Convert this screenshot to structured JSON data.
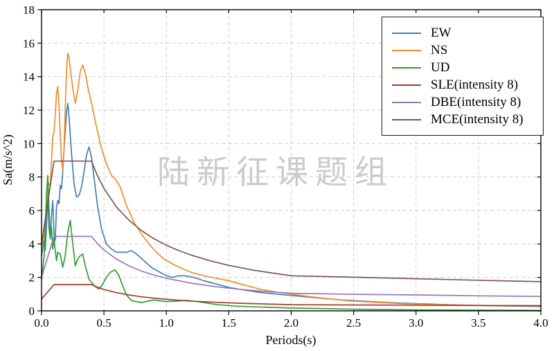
{
  "watermark": "陆新征课题组",
  "chart_data": {
    "type": "line",
    "title": "",
    "xlabel": "Periods(s)",
    "ylabel": "Sa(m/s^2)",
    "xlim": [
      0,
      4
    ],
    "ylim": [
      0,
      18
    ],
    "xticks": [
      0,
      0.5,
      1,
      1.5,
      2,
      2.5,
      3,
      3.5,
      4
    ],
    "xtick_labels": [
      "0.0",
      "0.5",
      "1.0",
      "1.5",
      "2.0",
      "2.5",
      "3.0",
      "3.5",
      "4.0"
    ],
    "yticks": [
      0,
      2,
      4,
      6,
      8,
      10,
      12,
      14,
      16,
      18
    ],
    "ytick_labels": [
      "0",
      "2",
      "4",
      "6",
      "8",
      "10",
      "12",
      "14",
      "16",
      "18"
    ],
    "grid": true,
    "grid_style": "dashed",
    "legend_position": "top-right",
    "series": [
      {
        "name": "EW",
        "color": "#4080b2",
        "points": [
          [
            0,
            3.3
          ],
          [
            0.02,
            4.2
          ],
          [
            0.03,
            3.6
          ],
          [
            0.04,
            5.1
          ],
          [
            0.05,
            6.9
          ],
          [
            0.06,
            4.9
          ],
          [
            0.07,
            4.3
          ],
          [
            0.08,
            5.7
          ],
          [
            0.09,
            6.6
          ],
          [
            0.1,
            4.6
          ],
          [
            0.11,
            4.2
          ],
          [
            0.12,
            6.2
          ],
          [
            0.13,
            6.6
          ],
          [
            0.14,
            6.4
          ],
          [
            0.15,
            7.5
          ],
          [
            0.16,
            7.3
          ],
          [
            0.17,
            8.3
          ],
          [
            0.18,
            9.6
          ],
          [
            0.2,
            11.9
          ],
          [
            0.21,
            12.4
          ],
          [
            0.22,
            11.6
          ],
          [
            0.24,
            9.4
          ],
          [
            0.26,
            7.6
          ],
          [
            0.28,
            6.8
          ],
          [
            0.3,
            6.9
          ],
          [
            0.32,
            7.4
          ],
          [
            0.34,
            8.3
          ],
          [
            0.36,
            9.3
          ],
          [
            0.38,
            9.8
          ],
          [
            0.4,
            9.2
          ],
          [
            0.42,
            8.0
          ],
          [
            0.45,
            6.2
          ],
          [
            0.48,
            4.9
          ],
          [
            0.52,
            4.0
          ],
          [
            0.56,
            3.7
          ],
          [
            0.6,
            3.5
          ],
          [
            0.64,
            3.5
          ],
          [
            0.68,
            3.5
          ],
          [
            0.72,
            3.6
          ],
          [
            0.76,
            3.4
          ],
          [
            0.82,
            3.0
          ],
          [
            0.88,
            2.6
          ],
          [
            0.95,
            2.3
          ],
          [
            1.0,
            2.1
          ],
          [
            1.05,
            2.0
          ],
          [
            1.1,
            2.1
          ],
          [
            1.15,
            2.1
          ],
          [
            1.22,
            2.0
          ],
          [
            1.3,
            1.8
          ],
          [
            1.4,
            1.6
          ],
          [
            1.5,
            1.4
          ],
          [
            1.62,
            1.25
          ],
          [
            1.75,
            1.1
          ],
          [
            1.88,
            1.0
          ],
          [
            2.0,
            0.92
          ],
          [
            2.2,
            0.78
          ],
          [
            2.4,
            0.66
          ],
          [
            2.6,
            0.57
          ],
          [
            2.8,
            0.49
          ],
          [
            3.0,
            0.43
          ],
          [
            3.25,
            0.37
          ],
          [
            3.5,
            0.32
          ],
          [
            3.75,
            0.29
          ],
          [
            4.0,
            0.26
          ]
        ]
      },
      {
        "name": "NS",
        "color": "#f78b29",
        "points": [
          [
            0,
            3.8
          ],
          [
            0.02,
            4.5
          ],
          [
            0.04,
            6.3
          ],
          [
            0.05,
            7.3
          ],
          [
            0.06,
            7.6
          ],
          [
            0.07,
            7.5
          ],
          [
            0.08,
            9.0
          ],
          [
            0.09,
            10.4
          ],
          [
            0.1,
            10.7
          ],
          [
            0.11,
            11.7
          ],
          [
            0.12,
            13.0
          ],
          [
            0.13,
            13.4
          ],
          [
            0.14,
            12.3
          ],
          [
            0.15,
            10.5
          ],
          [
            0.16,
            9.0
          ],
          [
            0.17,
            8.4
          ],
          [
            0.18,
            9.7
          ],
          [
            0.19,
            12.1
          ],
          [
            0.2,
            14.4
          ],
          [
            0.21,
            15.4
          ],
          [
            0.22,
            15.1
          ],
          [
            0.23,
            14.5
          ],
          [
            0.25,
            13.3
          ],
          [
            0.27,
            12.4
          ],
          [
            0.29,
            13.2
          ],
          [
            0.31,
            14.3
          ],
          [
            0.33,
            14.7
          ],
          [
            0.35,
            14.2
          ],
          [
            0.37,
            13.4
          ],
          [
            0.4,
            12.4
          ],
          [
            0.44,
            11.0
          ],
          [
            0.48,
            9.7
          ],
          [
            0.52,
            8.8
          ],
          [
            0.56,
            8.1
          ],
          [
            0.59,
            7.9
          ],
          [
            0.63,
            7.4
          ],
          [
            0.68,
            6.3
          ],
          [
            0.74,
            5.3
          ],
          [
            0.8,
            4.6
          ],
          [
            0.86,
            4.0
          ],
          [
            0.92,
            3.5
          ],
          [
            0.98,
            3.1
          ],
          [
            1.05,
            2.8
          ],
          [
            1.12,
            2.55
          ],
          [
            1.2,
            2.3
          ],
          [
            1.3,
            2.1
          ],
          [
            1.4,
            1.95
          ],
          [
            1.5,
            1.8
          ],
          [
            1.62,
            1.55
          ],
          [
            1.75,
            1.3
          ],
          [
            1.88,
            1.12
          ],
          [
            2.0,
            1.0
          ],
          [
            2.15,
            0.85
          ],
          [
            2.3,
            0.72
          ],
          [
            2.5,
            0.58
          ],
          [
            2.7,
            0.5
          ],
          [
            2.9,
            0.43
          ],
          [
            3.1,
            0.38
          ],
          [
            3.3,
            0.35
          ],
          [
            3.6,
            0.32
          ],
          [
            4.0,
            0.3
          ]
        ]
      },
      {
        "name": "UD",
        "color": "#2ca02c",
        "points": [
          [
            0,
            1.9
          ],
          [
            0.02,
            3.2
          ],
          [
            0.03,
            5.0
          ],
          [
            0.04,
            7.0
          ],
          [
            0.05,
            8.1
          ],
          [
            0.06,
            6.1
          ],
          [
            0.07,
            4.4
          ],
          [
            0.08,
            5.0
          ],
          [
            0.09,
            3.7
          ],
          [
            0.1,
            4.3
          ],
          [
            0.11,
            3.6
          ],
          [
            0.12,
            3.0
          ],
          [
            0.13,
            3.5
          ],
          [
            0.15,
            3.4
          ],
          [
            0.17,
            2.6
          ],
          [
            0.19,
            3.3
          ],
          [
            0.21,
            4.7
          ],
          [
            0.23,
            5.4
          ],
          [
            0.25,
            4.0
          ],
          [
            0.27,
            2.7
          ],
          [
            0.29,
            3.1
          ],
          [
            0.31,
            3.3
          ],
          [
            0.33,
            3.4
          ],
          [
            0.35,
            2.7
          ],
          [
            0.38,
            1.9
          ],
          [
            0.4,
            1.7
          ],
          [
            0.43,
            1.45
          ],
          [
            0.46,
            1.3
          ],
          [
            0.49,
            1.6
          ],
          [
            0.52,
            2.0
          ],
          [
            0.55,
            2.3
          ],
          [
            0.59,
            2.45
          ],
          [
            0.62,
            2.1
          ],
          [
            0.65,
            1.5
          ],
          [
            0.68,
            0.95
          ],
          [
            0.72,
            0.62
          ],
          [
            0.76,
            0.55
          ],
          [
            0.8,
            0.5
          ],
          [
            0.85,
            0.58
          ],
          [
            0.9,
            0.65
          ],
          [
            0.95,
            0.6
          ],
          [
            1.0,
            0.56
          ],
          [
            1.08,
            0.58
          ],
          [
            1.16,
            0.63
          ],
          [
            1.25,
            0.55
          ],
          [
            1.4,
            0.38
          ],
          [
            1.55,
            0.28
          ],
          [
            1.7,
            0.24
          ],
          [
            2.0,
            0.17
          ],
          [
            2.5,
            0.1
          ],
          [
            3.0,
            0.06
          ],
          [
            3.5,
            0.04
          ],
          [
            4.0,
            0.03
          ]
        ]
      },
      {
        "name": "SLE(intensity 8)",
        "color": "#a93931",
        "points": [
          [
            0,
            0.71
          ],
          [
            0.1,
            1.57
          ],
          [
            0.4,
            1.57
          ],
          [
            0.45,
            1.41
          ],
          [
            0.5,
            1.28
          ],
          [
            0.6,
            1.09
          ],
          [
            0.7,
            0.95
          ],
          [
            0.8,
            0.84
          ],
          [
            0.9,
            0.76
          ],
          [
            1.0,
            0.69
          ],
          [
            1.2,
            0.58
          ],
          [
            1.4,
            0.51
          ],
          [
            1.6,
            0.45
          ],
          [
            1.8,
            0.41
          ],
          [
            2.0,
            0.37
          ],
          [
            2.5,
            0.35
          ],
          [
            3.0,
            0.34
          ],
          [
            3.5,
            0.32
          ],
          [
            4.0,
            0.31
          ]
        ]
      },
      {
        "name": "DBE(intensity 8)",
        "color": "#9577bd",
        "points": [
          [
            0,
            2.0
          ],
          [
            0.1,
            4.45
          ],
          [
            0.4,
            4.45
          ],
          [
            0.45,
            4.0
          ],
          [
            0.5,
            3.64
          ],
          [
            0.6,
            3.09
          ],
          [
            0.7,
            2.69
          ],
          [
            0.8,
            2.38
          ],
          [
            0.9,
            2.14
          ],
          [
            1.0,
            1.95
          ],
          [
            1.2,
            1.65
          ],
          [
            1.4,
            1.44
          ],
          [
            1.6,
            1.28
          ],
          [
            1.8,
            1.15
          ],
          [
            2.0,
            1.05
          ],
          [
            2.5,
            0.99
          ],
          [
            3.0,
            0.95
          ],
          [
            3.5,
            0.9
          ],
          [
            4.0,
            0.86
          ]
        ]
      },
      {
        "name": "MCE(intensity 8)",
        "color": "#7d564c",
        "points": [
          [
            0,
            4.0
          ],
          [
            0.1,
            8.95
          ],
          [
            0.4,
            8.95
          ],
          [
            0.45,
            8.05
          ],
          [
            0.5,
            7.32
          ],
          [
            0.6,
            6.21
          ],
          [
            0.7,
            5.42
          ],
          [
            0.8,
            4.8
          ],
          [
            0.9,
            4.31
          ],
          [
            1.0,
            3.92
          ],
          [
            1.1,
            3.6
          ],
          [
            1.2,
            3.33
          ],
          [
            1.35,
            2.99
          ],
          [
            1.5,
            2.72
          ],
          [
            1.7,
            2.43
          ],
          [
            1.85,
            2.26
          ],
          [
            2.0,
            2.1
          ],
          [
            2.5,
            2.01
          ],
          [
            3.0,
            1.92
          ],
          [
            3.5,
            1.83
          ],
          [
            4.0,
            1.74
          ]
        ]
      }
    ]
  }
}
